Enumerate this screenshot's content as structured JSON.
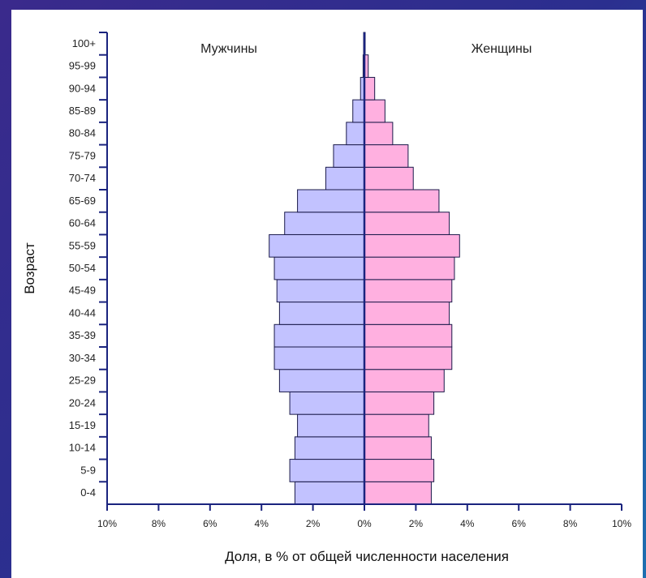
{
  "chart_data": {
    "type": "bar",
    "orientation": "horizontal",
    "subtype": "population-pyramid",
    "categories": [
      "0-4",
      "5-9",
      "10-14",
      "15-19",
      "20-24",
      "25-29",
      "30-34",
      "35-39",
      "40-44",
      "45-49",
      "50-54",
      "55-59",
      "60-64",
      "65-69",
      "70-74",
      "75-79",
      "80-84",
      "85-89",
      "90-94",
      "95-99",
      "100+"
    ],
    "series": [
      {
        "name": "Мужчины",
        "color": "#c2c2ff",
        "values": [
          2.7,
          2.9,
          2.7,
          2.6,
          2.9,
          3.3,
          3.5,
          3.5,
          3.3,
          3.4,
          3.5,
          3.7,
          3.1,
          2.6,
          1.5,
          1.2,
          0.7,
          0.45,
          0.15,
          0.05,
          0.03
        ]
      },
      {
        "name": "Женщины",
        "color": "#ffb0e0",
        "values": [
          2.6,
          2.7,
          2.6,
          2.5,
          2.7,
          3.1,
          3.4,
          3.4,
          3.3,
          3.4,
          3.5,
          3.7,
          3.3,
          2.9,
          1.9,
          1.7,
          1.1,
          0.8,
          0.4,
          0.15,
          0.03
        ]
      }
    ],
    "xlabel": "Доля, в % от общей численности населения",
    "ylabel": "Возраст",
    "xlim": [
      -10,
      10
    ],
    "x_ticks": [
      -10,
      -8,
      -6,
      -4,
      -2,
      0,
      2,
      4,
      6,
      8,
      10
    ],
    "x_tick_labels": [
      "10%",
      "8%",
      "6%",
      "4%",
      "2%",
      "0%",
      "2%",
      "4%",
      "6%",
      "8%",
      "10%"
    ],
    "left_label": "Мужчины",
    "right_label": "Женщины",
    "grid": false,
    "axis_color": "#1a237e"
  }
}
